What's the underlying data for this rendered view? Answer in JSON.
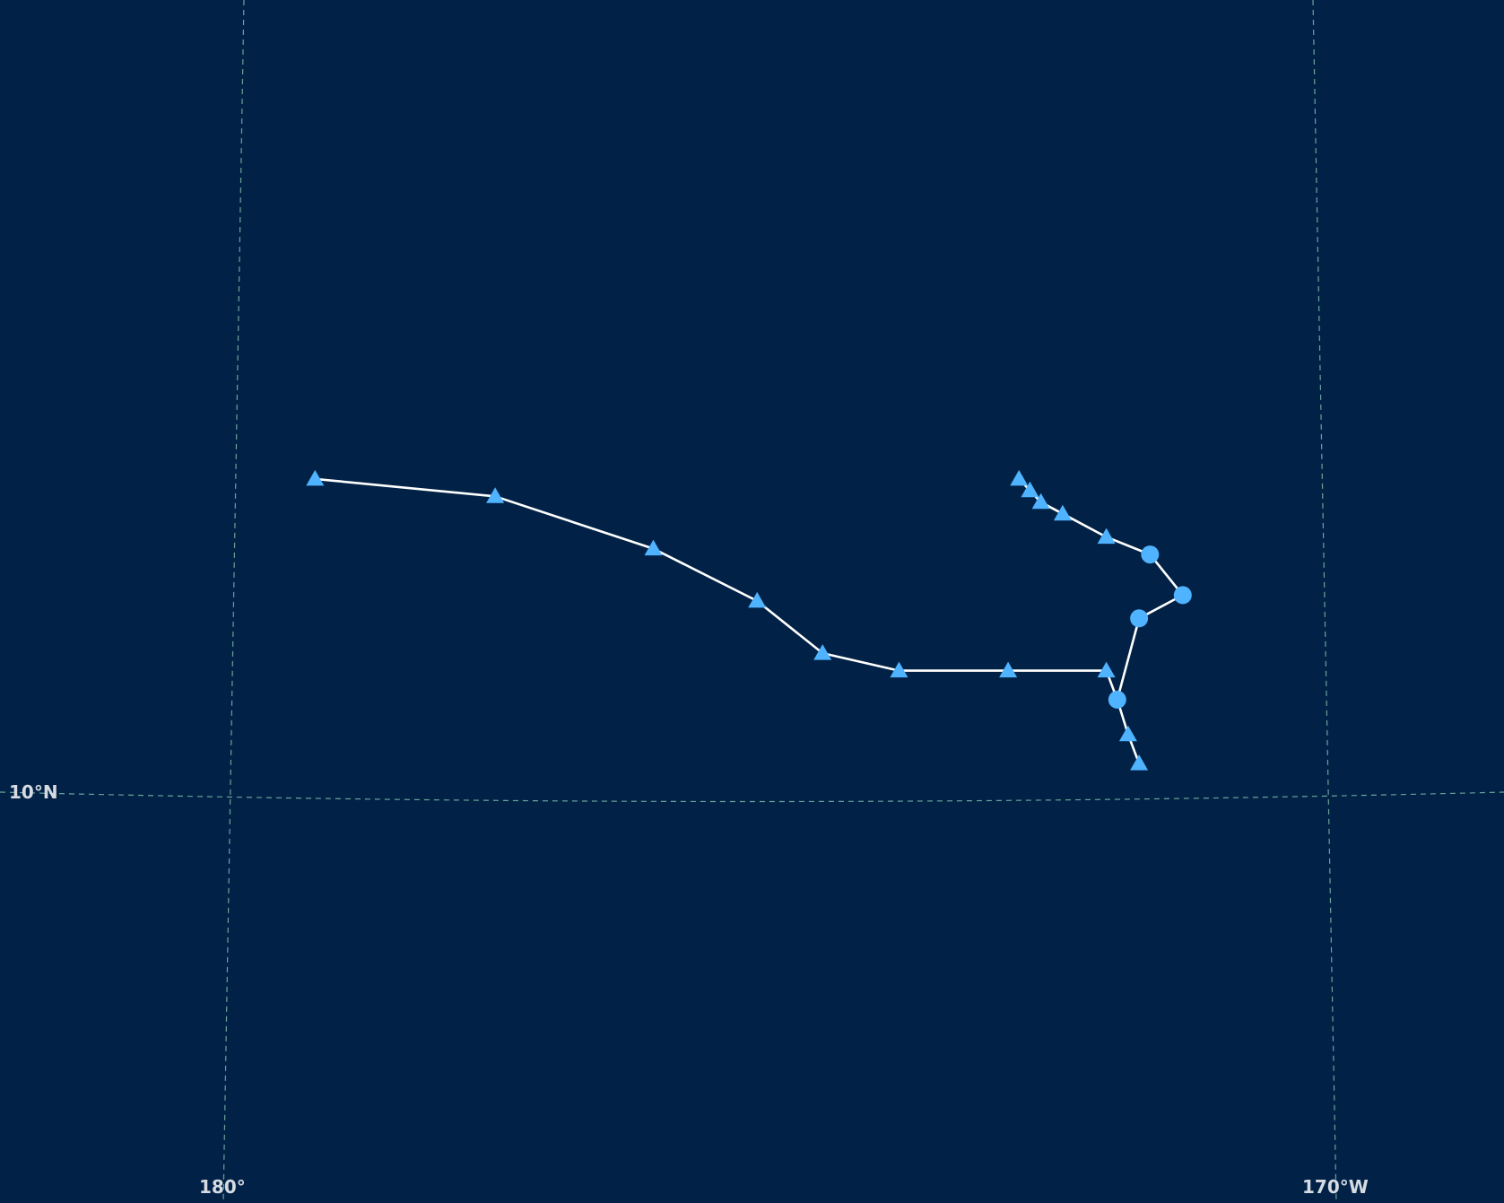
{
  "map": {
    "background_color": "#012246",
    "graticule_color": "#6aa39a",
    "track_line_color": "#ffffff",
    "marker_color": "#4fb3ff",
    "label_color": "#d6dbe2"
  },
  "graticule_labels": {
    "lat_10n": "10°N",
    "lon_180": "180°",
    "lon_170w": "170°W"
  },
  "storm_track": {
    "marker_legend": {
      "triangle": "triangle-marker",
      "circle": "circle-marker"
    },
    "points": [
      {
        "lon": -179.25,
        "lat": 12.75,
        "marker": "triangle"
      },
      {
        "lon": -177.6,
        "lat": 12.6,
        "marker": "triangle"
      },
      {
        "lon": -176.15,
        "lat": 12.15,
        "marker": "triangle"
      },
      {
        "lon": -175.2,
        "lat": 11.7,
        "marker": "triangle"
      },
      {
        "lon": -174.6,
        "lat": 11.25,
        "marker": "triangle"
      },
      {
        "lon": -173.9,
        "lat": 11.1,
        "marker": "triangle"
      },
      {
        "lon": -172.9,
        "lat": 11.1,
        "marker": "triangle"
      },
      {
        "lon": -172.0,
        "lat": 11.1,
        "marker": "triangle"
      },
      {
        "lon": -171.9,
        "lat": 10.85,
        "marker": "circle"
      },
      {
        "lon": -171.7,
        "lat": 11.55,
        "marker": "circle"
      },
      {
        "lon": -171.3,
        "lat": 11.75,
        "marker": "circle"
      },
      {
        "lon": -171.6,
        "lat": 12.1,
        "marker": "circle"
      },
      {
        "lon": -172.0,
        "lat": 12.25,
        "marker": "triangle"
      },
      {
        "lon": -172.4,
        "lat": 12.45,
        "marker": "triangle"
      },
      {
        "lon": -172.6,
        "lat": 12.55,
        "marker": "triangle"
      },
      {
        "lon": -172.7,
        "lat": 12.65,
        "marker": "triangle"
      },
      {
        "lon": -172.8,
        "lat": 12.75,
        "marker": "triangle"
      }
    ],
    "tail_points": [
      {
        "lon": -171.9,
        "lat": 10.85,
        "marker": "circle"
      },
      {
        "lon": -171.8,
        "lat": 10.55,
        "marker": "triangle"
      },
      {
        "lon": -171.7,
        "lat": 10.3,
        "marker": "triangle"
      }
    ]
  }
}
